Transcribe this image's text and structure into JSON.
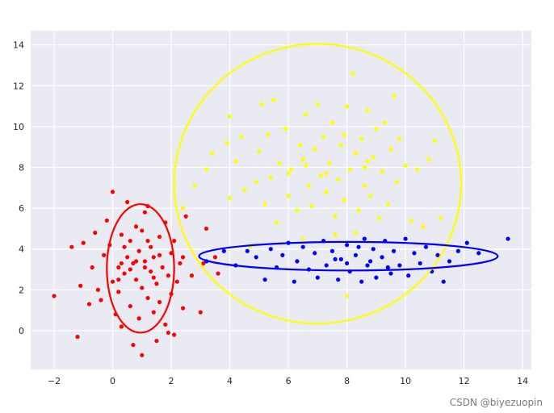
{
  "chart_data": {
    "type": "scatter",
    "title": "",
    "xlabel": "",
    "ylabel": "",
    "xlim": [
      -2.8,
      14.3
    ],
    "ylim": [
      -1.9,
      14.7
    ],
    "x_ticks": [
      -2,
      0,
      2,
      4,
      6,
      8,
      10,
      12,
      14
    ],
    "y_ticks": [
      0,
      2,
      4,
      6,
      8,
      10,
      12,
      14
    ],
    "grid": true,
    "background": "#EAEAF2",
    "series": [
      {
        "color": "#FF0000",
        "points": [
          [
            -2.0,
            1.7
          ],
          [
            -1.4,
            4.1
          ],
          [
            -1.1,
            2.2
          ],
          [
            -1.2,
            -0.3
          ],
          [
            -1.0,
            4.3
          ],
          [
            -0.8,
            1.3
          ],
          [
            -0.7,
            3.1
          ],
          [
            -0.6,
            4.8
          ],
          [
            -0.5,
            2.0
          ],
          [
            -0.4,
            1.5
          ],
          [
            -0.3,
            3.7
          ],
          [
            -0.2,
            5.4
          ],
          [
            -0.1,
            4.2
          ],
          [
            0.0,
            6.8
          ],
          [
            0.0,
            2.4
          ],
          [
            0.1,
            0.8
          ],
          [
            0.2,
            3.1
          ],
          [
            0.2,
            1.9
          ],
          [
            0.3,
            4.7
          ],
          [
            0.3,
            0.2
          ],
          [
            0.4,
            2.8
          ],
          [
            0.5,
            3.6
          ],
          [
            0.5,
            6.3
          ],
          [
            0.6,
            1.2
          ],
          [
            0.6,
            4.4
          ],
          [
            0.7,
            3.3
          ],
          [
            0.7,
            -0.7
          ],
          [
            0.8,
            2.5
          ],
          [
            0.8,
            5.1
          ],
          [
            0.9,
            3.9
          ],
          [
            0.9,
            0.6
          ],
          [
            1.0,
            -1.2
          ],
          [
            1.0,
            4.9
          ],
          [
            1.0,
            2.1
          ],
          [
            1.1,
            3.4
          ],
          [
            1.1,
            5.8
          ],
          [
            1.2,
            1.6
          ],
          [
            1.2,
            6.1
          ],
          [
            1.3,
            2.9
          ],
          [
            1.3,
            4.1
          ],
          [
            1.4,
            0.9
          ],
          [
            1.4,
            3.6
          ],
          [
            1.5,
            -0.5
          ],
          [
            1.5,
            2.3
          ],
          [
            1.6,
            4.6
          ],
          [
            1.6,
            1.4
          ],
          [
            1.7,
            3.1
          ],
          [
            1.8,
            5.3
          ],
          [
            1.8,
            0.3
          ],
          [
            1.9,
            2.7
          ],
          [
            1.9,
            -0.1
          ],
          [
            2.0,
            3.8
          ],
          [
            2.0,
            1.8
          ],
          [
            2.1,
            4.4
          ],
          [
            2.1,
            -0.2
          ],
          [
            2.2,
            2.4
          ],
          [
            2.3,
            3.3
          ],
          [
            2.4,
            1.1
          ],
          [
            2.4,
            3.6
          ],
          [
            2.5,
            5.6
          ],
          [
            2.7,
            2.7
          ],
          [
            3.0,
            0.9
          ],
          [
            3.1,
            3.3
          ],
          [
            3.2,
            5.0
          ],
          [
            3.5,
            3.6
          ],
          [
            3.6,
            2.8
          ],
          [
            0.3,
            3.3
          ],
          [
            0.6,
            3.0
          ],
          [
            0.8,
            3.4
          ],
          [
            1.1,
            3.1
          ],
          [
            1.4,
            2.6
          ],
          [
            0.4,
            4.1
          ],
          [
            1.2,
            4.4
          ],
          [
            0.2,
            2.5
          ],
          [
            1.6,
            3.7
          ]
        ]
      },
      {
        "color": "#FFFF00",
        "points": [
          [
            2.4,
            6.0
          ],
          [
            2.8,
            7.1
          ],
          [
            3.2,
            7.9
          ],
          [
            3.4,
            8.7
          ],
          [
            3.9,
            9.2
          ],
          [
            4.0,
            6.5
          ],
          [
            4.0,
            10.5
          ],
          [
            4.2,
            8.3
          ],
          [
            4.4,
            9.5
          ],
          [
            4.5,
            6.9
          ],
          [
            4.7,
            4.1
          ],
          [
            4.9,
            7.3
          ],
          [
            5.0,
            8.8
          ],
          [
            5.1,
            11.1
          ],
          [
            5.2,
            6.2
          ],
          [
            5.3,
            9.6
          ],
          [
            5.4,
            7.5
          ],
          [
            5.5,
            11.3
          ],
          [
            5.6,
            5.3
          ],
          [
            5.7,
            8.2
          ],
          [
            5.9,
            9.9
          ],
          [
            6.0,
            6.6
          ],
          [
            6.1,
            7.9
          ],
          [
            6.3,
            5.9
          ],
          [
            6.4,
            9.1
          ],
          [
            6.5,
            8.4
          ],
          [
            6.6,
            10.6
          ],
          [
            6.7,
            7.1
          ],
          [
            6.8,
            6.1
          ],
          [
            6.9,
            8.9
          ],
          [
            7.0,
            11.1
          ],
          [
            7.1,
            7.6
          ],
          [
            7.2,
            9.5
          ],
          [
            7.3,
            6.8
          ],
          [
            7.4,
            8.2
          ],
          [
            7.5,
            10.2
          ],
          [
            7.6,
            5.6
          ],
          [
            7.7,
            7.4
          ],
          [
            7.8,
            9.1
          ],
          [
            7.9,
            6.4
          ],
          [
            8.0,
            11.0
          ],
          [
            8.1,
            7.9
          ],
          [
            8.2,
            12.6
          ],
          [
            8.3,
            8.7
          ],
          [
            8.4,
            5.9
          ],
          [
            8.5,
            9.4
          ],
          [
            8.6,
            7.1
          ],
          [
            8.7,
            10.8
          ],
          [
            8.8,
            6.6
          ],
          [
            8.9,
            8.5
          ],
          [
            9.0,
            9.9
          ],
          [
            9.1,
            5.5
          ],
          [
            9.2,
            7.8
          ],
          [
            9.3,
            10.2
          ],
          [
            9.4,
            6.2
          ],
          [
            9.5,
            8.9
          ],
          [
            9.6,
            11.5
          ],
          [
            9.7,
            7.3
          ],
          [
            9.8,
            9.4
          ],
          [
            10.0,
            8.1
          ],
          [
            10.2,
            5.4
          ],
          [
            10.4,
            7.9
          ],
          [
            10.6,
            5.1
          ],
          [
            10.8,
            8.4
          ],
          [
            11.0,
            9.3
          ],
          [
            11.2,
            5.5
          ],
          [
            8.0,
            1.7
          ],
          [
            6.6,
            8.1
          ],
          [
            7.3,
            7.7
          ],
          [
            8.6,
            8.0
          ],
          [
            6.0,
            7.7
          ],
          [
            7.9,
            9.6
          ],
          [
            8.7,
            8.3
          ],
          [
            6.5,
            4.5
          ],
          [
            7.6,
            4.7
          ],
          [
            8.3,
            4.8
          ]
        ]
      },
      {
        "color": "#0000FF",
        "points": [
          [
            3.2,
            3.4
          ],
          [
            3.8,
            3.9
          ],
          [
            4.2,
            3.2
          ],
          [
            4.6,
            3.9
          ],
          [
            4.9,
            3.6
          ],
          [
            5.2,
            2.5
          ],
          [
            5.4,
            4.0
          ],
          [
            5.6,
            3.1
          ],
          [
            5.8,
            3.7
          ],
          [
            6.0,
            4.3
          ],
          [
            6.2,
            2.4
          ],
          [
            6.3,
            3.4
          ],
          [
            6.5,
            4.1
          ],
          [
            6.7,
            3.0
          ],
          [
            6.9,
            3.8
          ],
          [
            7.0,
            2.6
          ],
          [
            7.2,
            4.4
          ],
          [
            7.3,
            3.2
          ],
          [
            7.5,
            3.9
          ],
          [
            7.7,
            2.5
          ],
          [
            7.8,
            3.5
          ],
          [
            8.0,
            4.2
          ],
          [
            8.1,
            2.9
          ],
          [
            8.3,
            3.7
          ],
          [
            8.5,
            2.4
          ],
          [
            8.6,
            4.5
          ],
          [
            8.7,
            3.2
          ],
          [
            8.9,
            4.0
          ],
          [
            9.0,
            2.6
          ],
          [
            9.2,
            3.6
          ],
          [
            9.3,
            4.4
          ],
          [
            9.5,
            2.8
          ],
          [
            9.6,
            3.9
          ],
          [
            9.8,
            3.2
          ],
          [
            10.0,
            4.5
          ],
          [
            10.1,
            2.7
          ],
          [
            10.3,
            3.8
          ],
          [
            10.5,
            3.3
          ],
          [
            10.7,
            4.1
          ],
          [
            10.9,
            2.9
          ],
          [
            11.1,
            3.7
          ],
          [
            11.3,
            2.4
          ],
          [
            11.5,
            3.4
          ],
          [
            11.8,
            3.9
          ],
          [
            12.1,
            4.3
          ],
          [
            12.5,
            3.8
          ],
          [
            13.5,
            4.5
          ],
          [
            8.0,
            3.3
          ],
          [
            8.8,
            3.4
          ],
          [
            9.4,
            3.1
          ],
          [
            7.6,
            3.5
          ],
          [
            8.4,
            4.1
          ]
        ]
      }
    ],
    "ellipses": [
      {
        "color": "#FF0000",
        "center": [
          0.95,
          3.05
        ],
        "rx": 1.15,
        "ry": 3.15
      },
      {
        "color": "#FFFF00",
        "center": [
          7.0,
          7.2
        ],
        "rx": 4.9,
        "ry": 6.85
      },
      {
        "color": "#0000FF",
        "center": [
          8.05,
          3.65
        ],
        "rx": 5.1,
        "ry": 0.7
      }
    ]
  },
  "watermark": "CSDN @biyezuopin"
}
